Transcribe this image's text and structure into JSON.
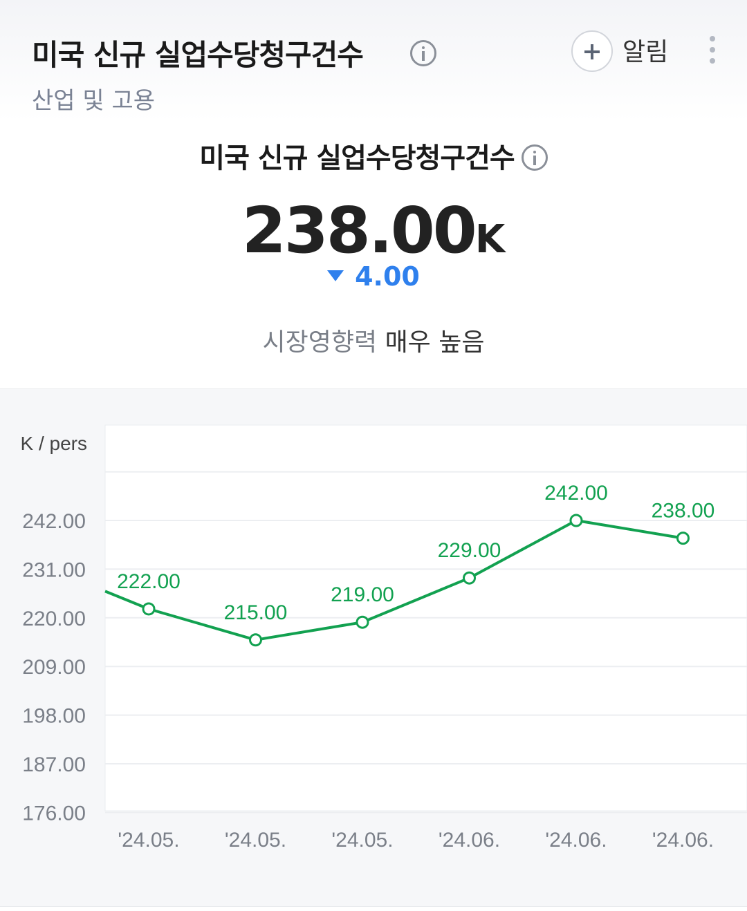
{
  "header": {
    "title": "미국 신규 실업수당청구건수",
    "category": "산업 및 고용",
    "alarm_label": "알림",
    "icons": [
      "info-icon",
      "plus-icon",
      "kebab-menu-icon"
    ]
  },
  "indicator": {
    "title": "미국 신규 실업수당청구건수",
    "value": "238.00",
    "unit": "K",
    "change": "4.00",
    "change_direction": "down",
    "impact_label": "시장영향력",
    "impact_value": "매우 높음"
  },
  "colors": {
    "line": "#12a150",
    "change_down": "#2f80ed",
    "axis_text": "#7a7f88"
  },
  "chart_data": {
    "type": "line",
    "ylabel": "K / pers",
    "y_ticks": [
      "242.00",
      "231.00",
      "220.00",
      "209.00",
      "198.00",
      "187.00",
      "176.00"
    ],
    "categories": [
      "'24.05.",
      "'24.05.",
      "'24.05.",
      "'24.06.",
      "'24.06.",
      "'24.06."
    ],
    "values": [
      222,
      215,
      219,
      229,
      242,
      238
    ],
    "point_labels": [
      "222.00",
      "215.00",
      "219.00",
      "229.00",
      "242.00",
      "238.00"
    ],
    "leading_value": 226
  }
}
